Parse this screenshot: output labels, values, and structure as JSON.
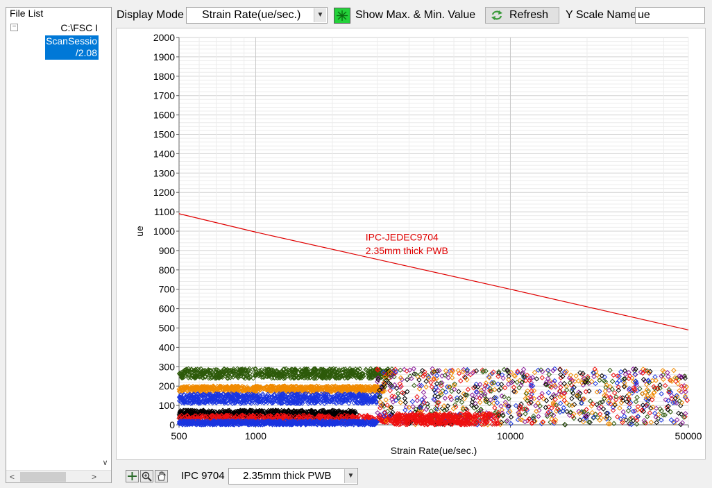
{
  "file_list": {
    "title": "File List",
    "root_label": "C:\\FSC I",
    "child_line1": "ScanSessio",
    "child_line2": "/2.08",
    "expander": "⊟"
  },
  "toolbar": {
    "display_mode_label": "Display Mode",
    "display_mode_value": "Strain Rate(ue/sec.)",
    "show_max_min_label": "Show Max. & Min. Value",
    "refresh_label": "Refresh",
    "y_scale_name_label": "Y Scale Name",
    "y_scale_name_value": "ue"
  },
  "bottom": {
    "ipc_label": "IPC 9704",
    "ipc_value": "2.35mm thick PWB"
  },
  "colors": {
    "limit_line": "#e00000",
    "dark_green": "#2d5a0a",
    "orange": "#f08a00",
    "blue": "#1a35e0",
    "black": "#000000",
    "red": "#ee1010",
    "purple": "#8a1a9a",
    "toggle_green": "#23d23a"
  },
  "chart_data": {
    "type": "scatter",
    "xlabel": "Strain Rate(ue/sec.)",
    "ylabel": "ue",
    "x_scale": "log",
    "xlim": [
      500,
      50000
    ],
    "ylim": [
      0,
      2000
    ],
    "x_ticks": [
      500,
      1000,
      10000,
      50000
    ],
    "x_tick_labels": [
      "500",
      "1000",
      "10000",
      "50000"
    ],
    "y_ticks": [
      0,
      100,
      200,
      300,
      400,
      500,
      600,
      700,
      800,
      900,
      1000,
      1100,
      1200,
      1300,
      1400,
      1500,
      1600,
      1700,
      1800,
      1900,
      2000
    ],
    "y_tick_labels": [
      "0",
      "100",
      "200",
      "300",
      "400",
      "500",
      "600",
      "700",
      "800",
      "900",
      "1000",
      "1100",
      "1200",
      "1300",
      "1400",
      "1500",
      "1600",
      "1700",
      "1800",
      "1900",
      "2000"
    ],
    "grid": true,
    "limit_line": {
      "label_line1": "IPC-JEDEC9704",
      "label_line2": "2.35mm thick PWB",
      "points": [
        [
          500,
          1090
        ],
        [
          1000,
          995
        ],
        [
          10000,
          700
        ],
        [
          50000,
          490
        ]
      ]
    },
    "bands": [
      {
        "name": "dark_green",
        "y_range": [
          240,
          290
        ],
        "x_end": 3500
      },
      {
        "name": "orange",
        "y_range": [
          170,
          200
        ],
        "x_end": 3200
      },
      {
        "name": "blue",
        "y_range": [
          110,
          160
        ],
        "x_end": 3000
      },
      {
        "name": "black",
        "y_range": [
          35,
          75
        ],
        "x_end": 2500
      },
      {
        "name": "red",
        "y_range": [
          10,
          50
        ],
        "x_end": 7000
      },
      {
        "name": "blue",
        "y_range": [
          0,
          20
        ],
        "x_end": 3000
      }
    ]
  }
}
